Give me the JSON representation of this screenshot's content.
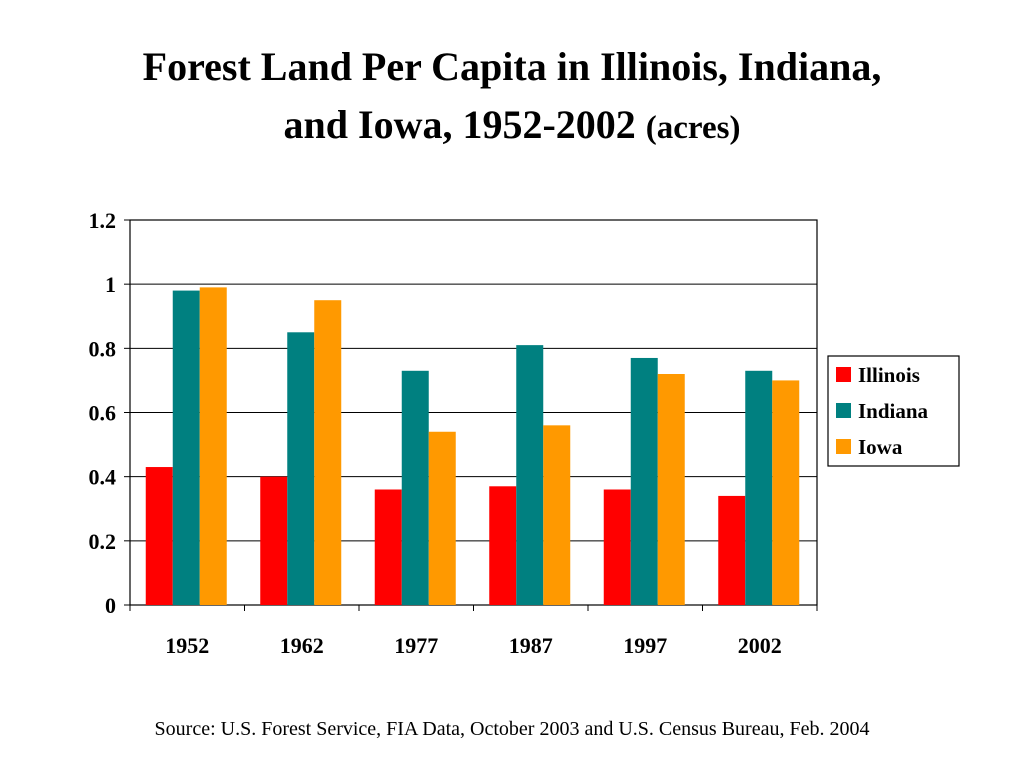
{
  "title": {
    "line1": "Forest Land Per Capita in Illinois, Indiana,",
    "line2": "and Iowa, 1952-2002",
    "unit": "(acres)"
  },
  "source": "Source: U.S. Forest Service, FIA Data, October 2003 and U.S. Census Bureau, Feb. 2004",
  "chart_data": {
    "type": "bar",
    "title": "Forest Land Per Capita in Illinois, Indiana, and Iowa, 1952-2002 (acres)",
    "xlabel": "",
    "ylabel": "",
    "categories": [
      "1952",
      "1962",
      "1977",
      "1987",
      "1997",
      "2002"
    ],
    "series": [
      {
        "name": "Illinois",
        "color": "#ff0000",
        "values": [
          0.43,
          0.4,
          0.36,
          0.37,
          0.36,
          0.34
        ]
      },
      {
        "name": "Indiana",
        "color": "#008080",
        "values": [
          0.98,
          0.85,
          0.73,
          0.81,
          0.77,
          0.73
        ]
      },
      {
        "name": "Iowa",
        "color": "#ff9900",
        "values": [
          0.99,
          0.95,
          0.54,
          0.56,
          0.72,
          0.7
        ]
      }
    ],
    "ylim": [
      0,
      1.2
    ],
    "yticks": [
      "0",
      "0.2",
      "0.4",
      "0.6",
      "0.8",
      "1",
      "1.2"
    ],
    "ytick_values": [
      0,
      0.2,
      0.4,
      0.6,
      0.8,
      1.0,
      1.2
    ],
    "grid": true,
    "legend": "right"
  }
}
